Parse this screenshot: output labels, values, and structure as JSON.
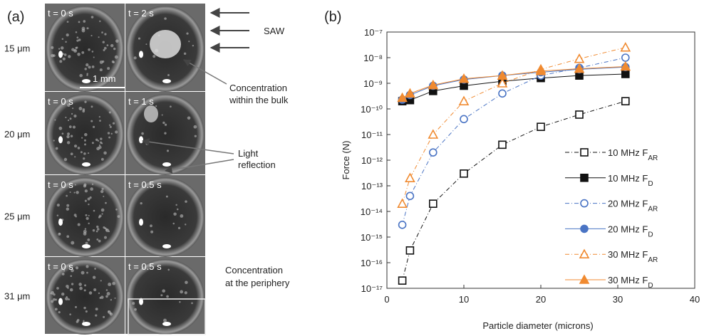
{
  "panel_a": {
    "label": "(a)",
    "sizes": [
      "15 μm",
      "20 μm",
      "25 μm",
      "31 μm"
    ],
    "times": [
      [
        "t = 0 s",
        "t = 2 s"
      ],
      [
        "t = 0 s",
        "t = 1 s"
      ],
      [
        "t = 0 s",
        "t = 0.5 s"
      ],
      [
        "t = 0 s",
        "t = 0.5 s"
      ]
    ],
    "scale_bar": "1 mm",
    "saw": "SAW",
    "bulk": [
      "Concentration",
      "within the bulk"
    ],
    "reflection": [
      "Light",
      "reflection"
    ],
    "periphery": [
      "Concentration",
      "at the periphery"
    ]
  },
  "chart_data": {
    "type": "line",
    "panel_label": "(b)",
    "x_label": "Particle diameter (microns)",
    "y_label": "Force (N)",
    "x": [
      2,
      3,
      6,
      10,
      15,
      20,
      25,
      31
    ],
    "xlim": [
      0,
      40
    ],
    "xticks": [
      0,
      10,
      20,
      30,
      40
    ],
    "ylim": [
      1e-17,
      1e-07
    ],
    "log_y": true,
    "yticks": [
      {
        "value": 1e-17,
        "label": "10⁻¹⁷"
      },
      {
        "value": 1e-16,
        "label": "10⁻¹⁶"
      },
      {
        "value": 1e-15,
        "label": "10⁻¹⁵"
      },
      {
        "value": 1e-14,
        "label": "10⁻¹⁴"
      },
      {
        "value": 1e-13,
        "label": "10⁻¹³"
      },
      {
        "value": 1e-12,
        "label": "10⁻¹²"
      },
      {
        "value": 1e-11,
        "label": "10⁻¹¹"
      },
      {
        "value": 1e-10,
        "label": "10⁻¹⁰"
      },
      {
        "value": 1e-09,
        "label": "10⁻⁹"
      },
      {
        "value": 1e-08,
        "label": "10⁻⁸"
      },
      {
        "value": 1e-07,
        "label": "10⁻⁷"
      }
    ],
    "series": [
      {
        "name": "10 MHz FAR",
        "color": "#111111",
        "marker": "square",
        "filled": false,
        "dashed": true,
        "values": [
          2e-17,
          3e-16,
          2e-14,
          3e-13,
          4e-12,
          2e-11,
          6e-11,
          2e-10
        ]
      },
      {
        "name": "10 MHz FD",
        "color": "#111111",
        "marker": "square",
        "filled": true,
        "dashed": false,
        "values": [
          2e-10,
          2.2e-10,
          5e-10,
          8e-10,
          1.2e-09,
          1.6e-09,
          2e-09,
          2.3e-09
        ]
      },
      {
        "name": "20 MHz FAR",
        "color": "#4a74c4",
        "marker": "circle",
        "filled": false,
        "dashed": true,
        "values": [
          3e-15,
          4e-14,
          2e-12,
          4e-11,
          4e-10,
          2e-09,
          4e-09,
          1e-08
        ]
      },
      {
        "name": "20 MHz FD",
        "color": "#4a74c4",
        "marker": "circle",
        "filled": true,
        "dashed": false,
        "values": [
          2.3e-10,
          3.5e-10,
          8e-10,
          1.4e-09,
          2e-09,
          2.7e-09,
          3.5e-09,
          4.3e-09
        ]
      },
      {
        "name": "30 MHz FAR",
        "color": "#f08a30",
        "marker": "triangle",
        "filled": false,
        "dashed": true,
        "values": [
          2e-14,
          2e-13,
          1e-11,
          2e-10,
          1e-09,
          3.5e-09,
          9e-09,
          2.5e-08
        ]
      },
      {
        "name": "30 MHz FD",
        "color": "#f08a30",
        "marker": "triangle",
        "filled": true,
        "dashed": false,
        "values": [
          2.7e-10,
          4e-10,
          8.5e-10,
          1.5e-09,
          2e-09,
          3e-09,
          3.7e-09,
          4.5e-09
        ]
      }
    ]
  }
}
